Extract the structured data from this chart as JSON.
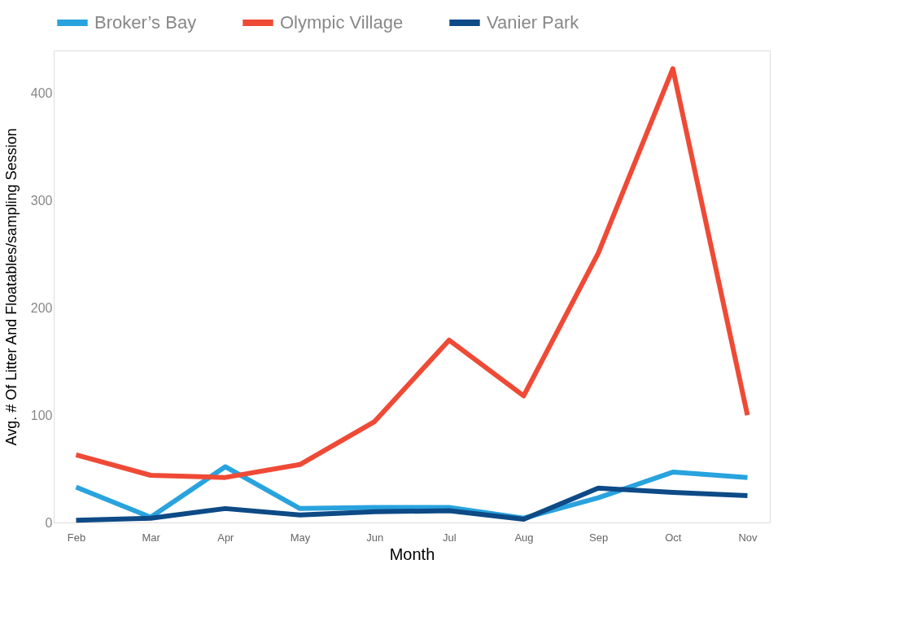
{
  "chart_data": {
    "type": "line",
    "xlabel": "Month",
    "ylabel": "Avg. # Of Litter And Floatables/sampling Session",
    "categories": [
      "Feb",
      "Mar",
      "Apr",
      "May",
      "Jun",
      "Jul",
      "Aug",
      "Sep",
      "Oct",
      "Nov"
    ],
    "series": [
      {
        "name": "Broker’s Bay",
        "color": "#29a3de",
        "values": [
          33,
          5,
          52,
          13,
          14,
          14,
          4,
          23,
          47,
          42
        ]
      },
      {
        "name": "Olympic Village",
        "color": "#ef4a36",
        "values": [
          63,
          44,
          42,
          54,
          94,
          170,
          118,
          251,
          423,
          100
        ]
      },
      {
        "name": "Vanier Park",
        "color": "#0d4a86",
        "values": [
          2,
          4,
          13,
          7,
          10,
          11,
          3,
          32,
          28,
          25
        ]
      }
    ],
    "ylim": [
      0,
      440
    ],
    "yticks": [
      0,
      100,
      200,
      300,
      400
    ],
    "grid": false,
    "legend": "top",
    "line_style": "solid"
  }
}
